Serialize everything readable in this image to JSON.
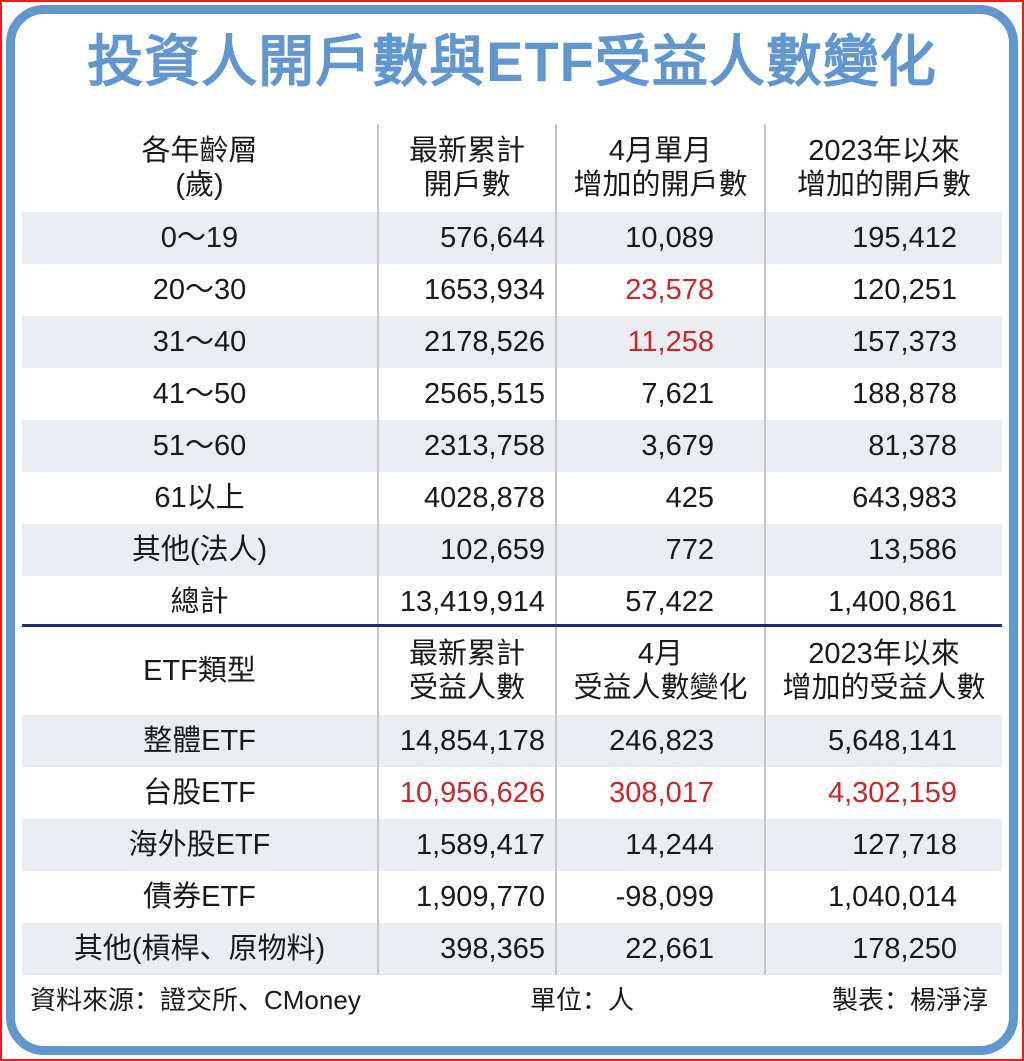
{
  "title": "投資人開戶數與ETF受益人數變化",
  "colors": {
    "accent_blue": "#6196cf",
    "outer_red": "#ee1c1c",
    "highlight_red": "#c6282b",
    "stripe": "#eaeef3",
    "divider_navy": "#1f2a6b"
  },
  "accounts_table": {
    "headers": [
      {
        "line1": "各年齡層",
        "line2": "(歲)"
      },
      {
        "line1": "最新累計",
        "line2": "開戶數"
      },
      {
        "line1": "4月單月",
        "line2": "增加的開戶數"
      },
      {
        "line1": "2023年以來",
        "line2": "增加的開戶數"
      }
    ],
    "rows": [
      {
        "label": "0～19",
        "cumulative": "576,644",
        "april": "10,089",
        "since2023": "195,412"
      },
      {
        "label": "20～30",
        "cumulative": "1653,934",
        "april": "23,578",
        "since2023": "120,251",
        "april_highlight": true
      },
      {
        "label": "31～40",
        "cumulative": "2178,526",
        "april": "11,258",
        "since2023": "157,373",
        "april_highlight": true
      },
      {
        "label": "41～50",
        "cumulative": "2565,515",
        "april": "7,621",
        "since2023": "188,878"
      },
      {
        "label": "51～60",
        "cumulative": "2313,758",
        "april": "3,679",
        "since2023": "81,378"
      },
      {
        "label": "61以上",
        "cumulative": "4028,878",
        "april": "425",
        "since2023": "643,983"
      },
      {
        "label": "其他(法人)",
        "cumulative": "102,659",
        "april": "772",
        "since2023": "13,586"
      },
      {
        "label": "總計",
        "cumulative": "13,419,914",
        "april": "57,422",
        "since2023": "1,400,861"
      }
    ]
  },
  "etf_table": {
    "headers": [
      {
        "line1": "ETF類型",
        "line2": ""
      },
      {
        "line1": "最新累計",
        "line2": "受益人數"
      },
      {
        "line1": "4月",
        "line2": "受益人數變化"
      },
      {
        "line1": "2023年以來",
        "line2": "增加的受益人數"
      }
    ],
    "rows": [
      {
        "label": "整體ETF",
        "cumulative": "14,854,178",
        "april": "246,823",
        "since2023": "5,648,141"
      },
      {
        "label": "台股ETF",
        "cumulative": "10,956,626",
        "april": "308,017",
        "since2023": "4,302,159",
        "row_highlight": true
      },
      {
        "label": "海外股ETF",
        "cumulative": "1,589,417",
        "april": "14,244",
        "since2023": "127,718"
      },
      {
        "label": "債券ETF",
        "cumulative": "1,909,770",
        "april": "-98,099",
        "since2023": "1,040,014"
      },
      {
        "label": "其他(槓桿、原物料)",
        "cumulative": "398,365",
        "april": "22,661",
        "since2023": "178,250"
      }
    ]
  },
  "footer": {
    "source": "資料來源：證交所、CMoney",
    "unit": "單位：人",
    "maker": "製表：楊淨淳"
  }
}
